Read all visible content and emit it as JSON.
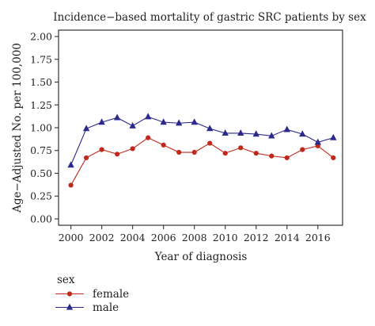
{
  "chart_data": {
    "type": "line",
    "title": "Incidence−based mortality of gastric SRC patients by sex",
    "xlabel": "Year of diagnosis",
    "ylabel": "Age−Adjusted No. per 100,000",
    "xlim": [
      1999.2,
      2017.6
    ],
    "ylim": [
      -0.07,
      2.07
    ],
    "x": [
      2000,
      2001,
      2002,
      2003,
      2004,
      2005,
      2006,
      2007,
      2008,
      2009,
      2010,
      2011,
      2012,
      2013,
      2014,
      2015,
      2016,
      2017
    ],
    "x_ticks": [
      2000,
      2002,
      2004,
      2006,
      2008,
      2010,
      2012,
      2014,
      2016
    ],
    "x_tick_labels": [
      "2000",
      "2002",
      "2004",
      "2006",
      "2008",
      "2010",
      "2012",
      "2014",
      "2016"
    ],
    "y_ticks": [
      0.0,
      0.25,
      0.5,
      0.75,
      1.0,
      1.25,
      1.5,
      1.75,
      2.0
    ],
    "y_tick_labels": [
      "0.00",
      "0.25",
      "0.50",
      "0.75",
      "1.00",
      "1.25",
      "1.50",
      "1.75",
      "2.00"
    ],
    "grid": false,
    "legend": {
      "title": "sex",
      "placement": "bottom-left"
    },
    "series": [
      {
        "name": "female",
        "color": "#c0281b",
        "marker": "circle",
        "values": [
          0.37,
          0.67,
          0.76,
          0.71,
          0.77,
          0.89,
          0.81,
          0.73,
          0.73,
          0.83,
          0.72,
          0.78,
          0.72,
          0.69,
          0.67,
          0.76,
          0.8,
          0.67
        ]
      },
      {
        "name": "male",
        "color": "#2b2a8c",
        "marker": "triangle",
        "values": [
          0.59,
          0.99,
          1.06,
          1.11,
          1.02,
          1.12,
          1.06,
          1.05,
          1.06,
          0.99,
          0.94,
          0.94,
          0.93,
          0.91,
          0.98,
          0.93,
          0.84,
          0.89
        ]
      }
    ]
  }
}
